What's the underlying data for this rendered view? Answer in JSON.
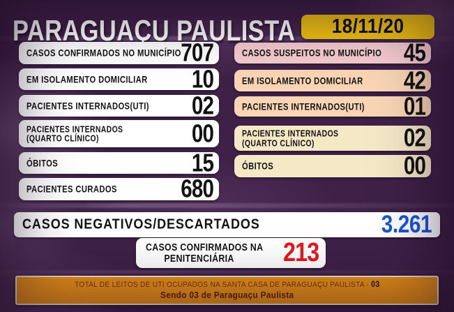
{
  "header": {
    "title": "PARAGUAÇU PAULISTA",
    "date": "18/11/20"
  },
  "left_column": {
    "rows": [
      {
        "label": "CASOS CONFIRMADOS NO MUNICÍPIO",
        "value": "707",
        "value_color": "red"
      },
      {
        "label": "EM ISOLAMENTO DOMICILIAR",
        "value": "10",
        "value_color": "black"
      },
      {
        "label": "PACIENTES INTERNADOS(UTI)",
        "value": "02",
        "value_color": "black"
      },
      {
        "label": "PACIENTES INTERNADOS\n(QUARTO CLÍNICO)",
        "value": "00",
        "value_color": "black"
      },
      {
        "label": "ÓBITOS",
        "value": "15",
        "value_color": "red"
      },
      {
        "label": "PACIENTES CURADOS",
        "value": "680",
        "value_color": "black"
      }
    ]
  },
  "right_column": {
    "rows": [
      {
        "label": "CASOS SUSPEITOS NO MUNICÍPIO",
        "value": "45",
        "value_color": "red"
      },
      {
        "label": "EM ISOLAMENTO DOMICILIAR",
        "value": "42",
        "value_color": "black"
      },
      {
        "label": "PACIENTES INTERNADOS(UTI)",
        "value": "01",
        "value_color": "black"
      },
      {
        "label": "PACIENTES INTERNADOS\n(QUARTO CLÍNICO)",
        "value": "02",
        "value_color": "black"
      },
      {
        "label": "ÓBITOS",
        "value": "00",
        "value_color": "red"
      }
    ]
  },
  "negativos": {
    "label": "CASOS NEGATIVOS/DESCARTADOS",
    "value": "3.261"
  },
  "penitenciaria": {
    "label": "CASOS CONFIRMADOS NA\nPENITENCIÁRIA",
    "value": "213"
  },
  "footer": {
    "line1_prefix": "TOTAL DE LEITOS DE UTI OCUPADOS NA SANTA CASA DE PARAGUAÇU PAULISTA - ",
    "line1_value": "03",
    "line2": "Sendo 03 de Paraguaçu Paulista"
  },
  "colors": {
    "background_purple": "#3f2148",
    "accent_red": "#e8161c",
    "accent_blue": "#1a56d6",
    "date_yellow": "#f2c313",
    "footer_orange": "#e89019",
    "box_white": "#ffffff",
    "box_pink": "#f6ccd0",
    "box_peach": "#f9d5b5",
    "box_cream": "#f5e8c6"
  }
}
